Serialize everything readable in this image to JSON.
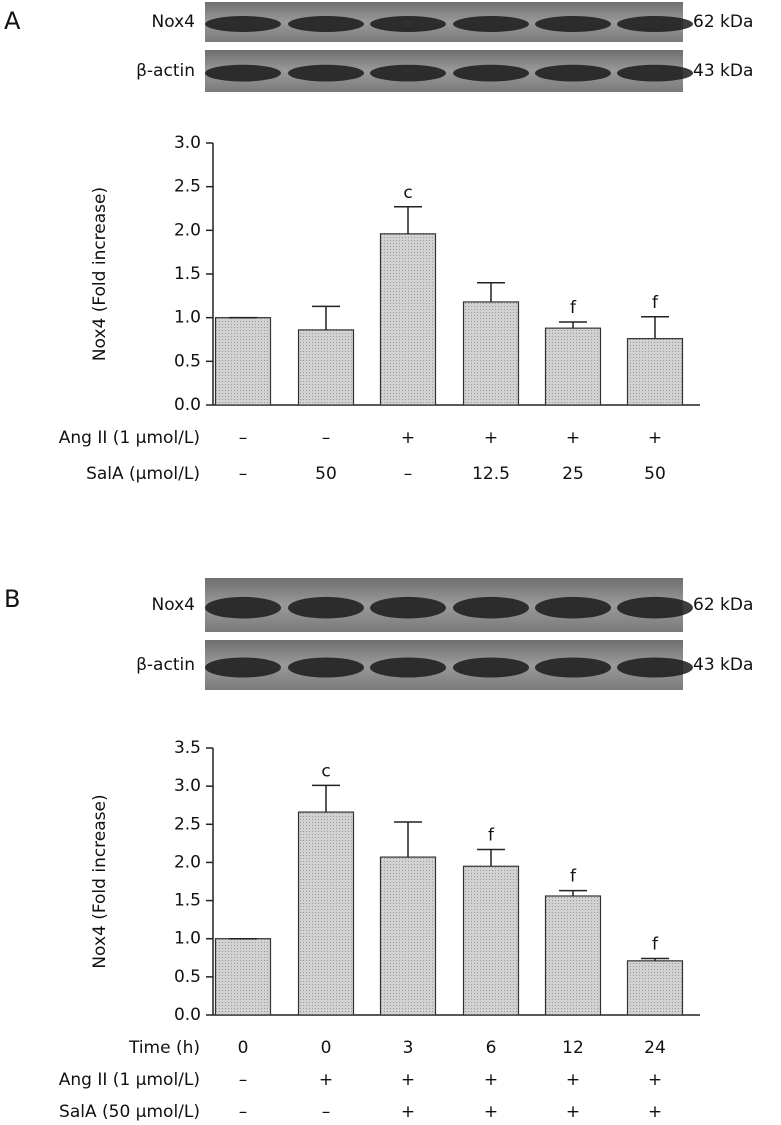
{
  "chart_data": [
    {
      "type": "bar",
      "panel": "A",
      "blots": [
        {
          "label": "Nox4",
          "size": "62 kDa"
        },
        {
          "label": "β-actin",
          "size": "43 kDa"
        }
      ],
      "ylabel": "Nox4 (Fold increase)",
      "ylim": [
        0,
        3
      ],
      "yticks": [
        {
          "value": 0,
          "label": "0.0"
        },
        0.5,
        {
          "value": 1,
          "label": "1.0"
        },
        1.5,
        {
          "value": 2,
          "label": "2.0"
        },
        2.5,
        {
          "value": 3,
          "label": "3.0"
        }
      ],
      "values": [
        1.0,
        0.86,
        1.96,
        1.18,
        0.88,
        0.76
      ],
      "errors": [
        0,
        0.27,
        0.31,
        0.22,
        0.07,
        0.25
      ],
      "significance": [
        null,
        null,
        "c",
        null,
        "f",
        "f"
      ],
      "color": "#c9c9c9",
      "conditions": [
        {
          "label": "Ang II (1 μmol/L)",
          "values": [
            "–",
            "–",
            "+",
            "+",
            "+",
            "+"
          ]
        },
        {
          "label": "SalA (μmol/L)",
          "values": [
            "–",
            "50",
            "–",
            "12.5",
            "25",
            "50"
          ]
        }
      ]
    },
    {
      "type": "bar",
      "panel": "B",
      "blots": [
        {
          "label": "Nox4",
          "size": "62 kDa"
        },
        {
          "label": "β-actin",
          "size": "43 kDa"
        }
      ],
      "ylabel": "Nox4 (Fold increase)",
      "ylim": [
        0,
        3.5
      ],
      "yticks": [
        {
          "value": 0,
          "label": "0.0"
        },
        0.5,
        {
          "value": 1,
          "label": "1.0"
        },
        1.5,
        {
          "value": 2,
          "label": "2.0"
        },
        2.5,
        {
          "value": 3,
          "label": "3.0"
        },
        3.5
      ],
      "values": [
        1.0,
        2.66,
        2.07,
        1.95,
        1.56,
        0.71
      ],
      "errors": [
        0,
        0.35,
        0.46,
        0.22,
        0.07,
        0.03
      ],
      "significance": [
        null,
        "c",
        null,
        "f",
        "f",
        "f"
      ],
      "color": "#c9c9c9",
      "conditions": [
        {
          "label": "Time (h)",
          "values": [
            "0",
            "0",
            "3",
            "6",
            "12",
            "24"
          ]
        },
        {
          "label": "Ang II (1 μmol/L)",
          "values": [
            "–",
            "+",
            "+",
            "+",
            "+",
            "+"
          ]
        },
        {
          "label": "SalA (50 μmol/L)",
          "values": [
            "–",
            "–",
            "+",
            "+",
            "+",
            "+"
          ]
        }
      ]
    }
  ]
}
